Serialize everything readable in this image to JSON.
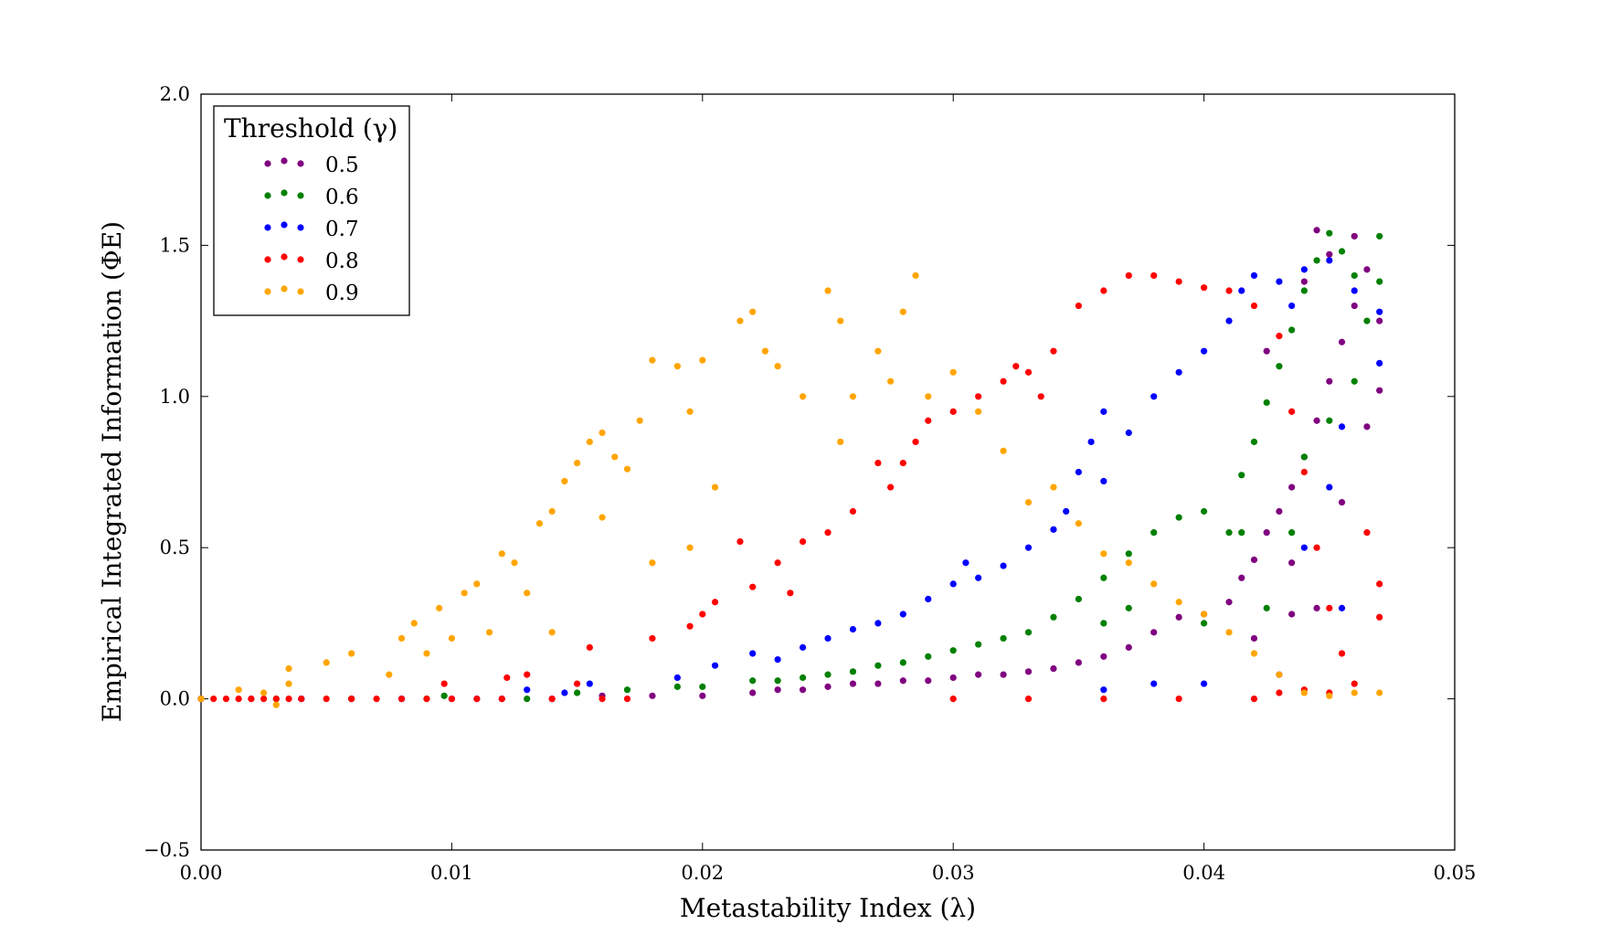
{
  "chart_data": {
    "type": "scatter",
    "xlabel": "Metastability Index (λ)",
    "ylabel": "Empirical Integrated Information (ΦE)",
    "xlim": [
      0.0,
      0.05
    ],
    "ylim": [
      -0.5,
      2.0
    ],
    "x_ticks": [
      "0.00",
      "0.01",
      "0.02",
      "0.03",
      "0.04",
      "0.05"
    ],
    "y_ticks": [
      "−0.5",
      "0.0",
      "0.5",
      "1.0",
      "1.5",
      "2.0"
    ],
    "grid": false,
    "legend": {
      "title": "Threshold (γ)",
      "placement": "top-left"
    },
    "series": [
      {
        "name": "0.5",
        "color": "#800080",
        "points": [
          [
            0.0,
            0.0
          ],
          [
            0.002,
            0.0
          ],
          [
            0.004,
            0.0
          ],
          [
            0.006,
            0.0
          ],
          [
            0.008,
            0.0
          ],
          [
            0.01,
            0.0
          ],
          [
            0.012,
            0.0
          ],
          [
            0.014,
            0.0
          ],
          [
            0.016,
            0.01
          ],
          [
            0.018,
            0.01
          ],
          [
            0.02,
            0.01
          ],
          [
            0.022,
            0.02
          ],
          [
            0.023,
            0.03
          ],
          [
            0.024,
            0.03
          ],
          [
            0.025,
            0.04
          ],
          [
            0.026,
            0.05
          ],
          [
            0.027,
            0.05
          ],
          [
            0.028,
            0.06
          ],
          [
            0.029,
            0.06
          ],
          [
            0.03,
            0.07
          ],
          [
            0.031,
            0.08
          ],
          [
            0.032,
            0.08
          ],
          [
            0.033,
            0.09
          ],
          [
            0.034,
            0.1
          ],
          [
            0.035,
            0.12
          ],
          [
            0.036,
            0.14
          ],
          [
            0.037,
            0.17
          ],
          [
            0.038,
            0.22
          ],
          [
            0.039,
            0.27
          ],
          [
            0.04,
            0.28
          ],
          [
            0.041,
            0.32
          ],
          [
            0.0415,
            0.4
          ],
          [
            0.042,
            0.46
          ],
          [
            0.0425,
            0.55
          ],
          [
            0.043,
            0.62
          ],
          [
            0.0435,
            0.7
          ],
          [
            0.044,
            0.8
          ],
          [
            0.0445,
            0.92
          ],
          [
            0.045,
            1.05
          ],
          [
            0.0455,
            1.18
          ],
          [
            0.046,
            1.3
          ],
          [
            0.0465,
            1.42
          ],
          [
            0.0445,
            1.55
          ],
          [
            0.046,
            1.53
          ],
          [
            0.047,
            1.25
          ],
          [
            0.047,
            1.02
          ],
          [
            0.0455,
            0.65
          ],
          [
            0.0435,
            0.45
          ],
          [
            0.044,
            1.38
          ],
          [
            0.045,
            1.47
          ],
          [
            0.0425,
            1.15
          ],
          [
            0.0465,
            0.9
          ],
          [
            0.0435,
            0.28
          ],
          [
            0.042,
            0.2
          ],
          [
            0.0445,
            0.3
          ]
        ]
      },
      {
        "name": "0.6",
        "color": "#008000",
        "points": [
          [
            0.0,
            0.0
          ],
          [
            0.003,
            0.0
          ],
          [
            0.006,
            0.0
          ],
          [
            0.009,
            0.0
          ],
          [
            0.0097,
            0.01
          ],
          [
            0.013,
            0.0
          ],
          [
            0.015,
            0.02
          ],
          [
            0.017,
            0.03
          ],
          [
            0.019,
            0.04
          ],
          [
            0.02,
            0.04
          ],
          [
            0.022,
            0.06
          ],
          [
            0.023,
            0.06
          ],
          [
            0.024,
            0.07
          ],
          [
            0.025,
            0.08
          ],
          [
            0.026,
            0.09
          ],
          [
            0.027,
            0.11
          ],
          [
            0.028,
            0.12
          ],
          [
            0.029,
            0.14
          ],
          [
            0.03,
            0.16
          ],
          [
            0.031,
            0.18
          ],
          [
            0.032,
            0.2
          ],
          [
            0.033,
            0.22
          ],
          [
            0.034,
            0.27
          ],
          [
            0.035,
            0.33
          ],
          [
            0.036,
            0.4
          ],
          [
            0.037,
            0.48
          ],
          [
            0.038,
            0.55
          ],
          [
            0.039,
            0.6
          ],
          [
            0.04,
            0.62
          ],
          [
            0.041,
            0.55
          ],
          [
            0.0415,
            0.74
          ],
          [
            0.042,
            0.85
          ],
          [
            0.0425,
            0.98
          ],
          [
            0.043,
            1.1
          ],
          [
            0.0435,
            1.22
          ],
          [
            0.044,
            1.35
          ],
          [
            0.0445,
            1.45
          ],
          [
            0.045,
            1.54
          ],
          [
            0.0455,
            1.48
          ],
          [
            0.046,
            1.4
          ],
          [
            0.047,
            1.53
          ],
          [
            0.047,
            1.38
          ],
          [
            0.0465,
            1.25
          ],
          [
            0.046,
            1.05
          ],
          [
            0.045,
            0.92
          ],
          [
            0.044,
            0.8
          ],
          [
            0.0435,
            0.55
          ],
          [
            0.0425,
            0.3
          ],
          [
            0.0415,
            0.55
          ],
          [
            0.04,
            0.25
          ],
          [
            0.037,
            0.3
          ],
          [
            0.036,
            0.25
          ]
        ]
      },
      {
        "name": "0.7",
        "color": "#0000ff",
        "points": [
          [
            0.0,
            0.0
          ],
          [
            0.004,
            0.0
          ],
          [
            0.008,
            0.0
          ],
          [
            0.011,
            0.0
          ],
          [
            0.013,
            0.03
          ],
          [
            0.0145,
            0.02
          ],
          [
            0.0155,
            0.05
          ],
          [
            0.019,
            0.07
          ],
          [
            0.0205,
            0.11
          ],
          [
            0.022,
            0.15
          ],
          [
            0.023,
            0.13
          ],
          [
            0.024,
            0.17
          ],
          [
            0.025,
            0.2
          ],
          [
            0.026,
            0.23
          ],
          [
            0.027,
            0.25
          ],
          [
            0.028,
            0.28
          ],
          [
            0.029,
            0.33
          ],
          [
            0.03,
            0.38
          ],
          [
            0.0305,
            0.45
          ],
          [
            0.031,
            0.4
          ],
          [
            0.032,
            0.44
          ],
          [
            0.033,
            0.5
          ],
          [
            0.034,
            0.56
          ],
          [
            0.0345,
            0.62
          ],
          [
            0.035,
            0.75
          ],
          [
            0.0355,
            0.85
          ],
          [
            0.036,
            0.95
          ],
          [
            0.037,
            0.88
          ],
          [
            0.038,
            1.0
          ],
          [
            0.039,
            1.08
          ],
          [
            0.04,
            1.15
          ],
          [
            0.041,
            1.25
          ],
          [
            0.0415,
            1.35
          ],
          [
            0.042,
            1.4
          ],
          [
            0.043,
            1.38
          ],
          [
            0.044,
            1.42
          ],
          [
            0.045,
            1.45
          ],
          [
            0.046,
            1.35
          ],
          [
            0.047,
            1.28
          ],
          [
            0.047,
            1.11
          ],
          [
            0.0455,
            0.9
          ],
          [
            0.045,
            0.7
          ],
          [
            0.044,
            0.5
          ],
          [
            0.0455,
            0.3
          ],
          [
            0.036,
            0.72
          ],
          [
            0.036,
            0.03
          ],
          [
            0.038,
            0.05
          ],
          [
            0.04,
            0.05
          ],
          [
            0.043,
            0.08
          ],
          [
            0.0435,
            1.3
          ]
        ]
      },
      {
        "name": "0.8",
        "color": "#ff0000",
        "points": [
          [
            0.0,
            0.0
          ],
          [
            0.0005,
            0.0
          ],
          [
            0.001,
            0.0
          ],
          [
            0.0015,
            0.0
          ],
          [
            0.002,
            0.0
          ],
          [
            0.0025,
            0.0
          ],
          [
            0.003,
            0.0
          ],
          [
            0.0035,
            0.0
          ],
          [
            0.004,
            0.0
          ],
          [
            0.005,
            0.0
          ],
          [
            0.006,
            0.0
          ],
          [
            0.007,
            0.0
          ],
          [
            0.008,
            0.0
          ],
          [
            0.009,
            0.0
          ],
          [
            0.0097,
            0.05
          ],
          [
            0.01,
            0.0
          ],
          [
            0.011,
            0.0
          ],
          [
            0.012,
            0.0
          ],
          [
            0.0122,
            0.07
          ],
          [
            0.013,
            0.08
          ],
          [
            0.014,
            0.0
          ],
          [
            0.015,
            0.05
          ],
          [
            0.0155,
            0.17
          ],
          [
            0.016,
            0.0
          ],
          [
            0.017,
            0.0
          ],
          [
            0.018,
            0.2
          ],
          [
            0.0195,
            0.24
          ],
          [
            0.02,
            0.28
          ],
          [
            0.0205,
            0.32
          ],
          [
            0.0215,
            0.52
          ],
          [
            0.022,
            0.37
          ],
          [
            0.023,
            0.45
          ],
          [
            0.0235,
            0.35
          ],
          [
            0.024,
            0.52
          ],
          [
            0.025,
            0.55
          ],
          [
            0.026,
            0.62
          ],
          [
            0.027,
            0.78
          ],
          [
            0.0275,
            0.7
          ],
          [
            0.028,
            0.78
          ],
          [
            0.0285,
            0.85
          ],
          [
            0.029,
            0.92
          ],
          [
            0.03,
            0.95
          ],
          [
            0.031,
            1.0
          ],
          [
            0.032,
            1.05
          ],
          [
            0.033,
            1.08
          ],
          [
            0.034,
            1.15
          ],
          [
            0.035,
            1.3
          ],
          [
            0.036,
            1.35
          ],
          [
            0.037,
            1.4
          ],
          [
            0.038,
            1.4
          ],
          [
            0.039,
            1.38
          ],
          [
            0.04,
            1.36
          ],
          [
            0.041,
            1.35
          ],
          [
            0.042,
            1.3
          ],
          [
            0.043,
            1.2
          ],
          [
            0.0435,
            0.95
          ],
          [
            0.044,
            0.75
          ],
          [
            0.0445,
            0.5
          ],
          [
            0.045,
            0.3
          ],
          [
            0.0455,
            0.15
          ],
          [
            0.046,
            0.05
          ],
          [
            0.047,
            0.38
          ],
          [
            0.047,
            0.27
          ],
          [
            0.0465,
            0.55
          ],
          [
            0.044,
            0.03
          ],
          [
            0.045,
            0.02
          ],
          [
            0.043,
            0.02
          ],
          [
            0.03,
            0.0
          ],
          [
            0.033,
            0.0
          ],
          [
            0.036,
            0.0
          ],
          [
            0.039,
            0.0
          ],
          [
            0.042,
            0.0
          ],
          [
            0.0325,
            1.1
          ],
          [
            0.0335,
            1.0
          ]
        ]
      },
      {
        "name": "0.9",
        "color": "#ffa500",
        "points": [
          [
            0.0,
            0.0
          ],
          [
            0.0015,
            0.03
          ],
          [
            0.0025,
            0.02
          ],
          [
            0.003,
            -0.02
          ],
          [
            0.0035,
            0.05
          ],
          [
            0.0035,
            0.1
          ],
          [
            0.005,
            0.12
          ],
          [
            0.006,
            0.15
          ],
          [
            0.0075,
            0.08
          ],
          [
            0.008,
            0.2
          ],
          [
            0.0085,
            0.25
          ],
          [
            0.009,
            0.15
          ],
          [
            0.0095,
            0.3
          ],
          [
            0.01,
            0.2
          ],
          [
            0.0105,
            0.35
          ],
          [
            0.011,
            0.38
          ],
          [
            0.0115,
            0.22
          ],
          [
            0.012,
            0.48
          ],
          [
            0.0125,
            0.45
          ],
          [
            0.013,
            0.35
          ],
          [
            0.0135,
            0.58
          ],
          [
            0.014,
            0.62
          ],
          [
            0.0145,
            0.72
          ],
          [
            0.015,
            0.78
          ],
          [
            0.0155,
            0.85
          ],
          [
            0.016,
            0.88
          ],
          [
            0.0165,
            0.8
          ],
          [
            0.017,
            0.76
          ],
          [
            0.0175,
            0.92
          ],
          [
            0.018,
            1.12
          ],
          [
            0.019,
            1.1
          ],
          [
            0.0195,
            0.95
          ],
          [
            0.02,
            1.12
          ],
          [
            0.0205,
            0.7
          ],
          [
            0.0215,
            1.25
          ],
          [
            0.022,
            1.28
          ],
          [
            0.0225,
            1.15
          ],
          [
            0.023,
            1.1
          ],
          [
            0.024,
            1.0
          ],
          [
            0.025,
            1.35
          ],
          [
            0.0255,
            1.25
          ],
          [
            0.026,
            1.0
          ],
          [
            0.027,
            1.15
          ],
          [
            0.0275,
            1.05
          ],
          [
            0.028,
            1.28
          ],
          [
            0.0285,
            1.4
          ],
          [
            0.029,
            1.0
          ],
          [
            0.03,
            1.08
          ],
          [
            0.031,
            0.95
          ],
          [
            0.032,
            0.82
          ],
          [
            0.033,
            0.65
          ],
          [
            0.034,
            0.7
          ],
          [
            0.035,
            0.58
          ],
          [
            0.036,
            0.48
          ],
          [
            0.037,
            0.45
          ],
          [
            0.038,
            0.38
          ],
          [
            0.039,
            0.32
          ],
          [
            0.04,
            0.28
          ],
          [
            0.041,
            0.22
          ],
          [
            0.042,
            0.15
          ],
          [
            0.043,
            0.08
          ],
          [
            0.044,
            0.02
          ],
          [
            0.045,
            0.01
          ],
          [
            0.046,
            0.02
          ],
          [
            0.047,
            0.02
          ],
          [
            0.0255,
            0.85
          ],
          [
            0.0195,
            0.5
          ],
          [
            0.014,
            0.22
          ],
          [
            0.016,
            0.6
          ],
          [
            0.018,
            0.45
          ]
        ]
      }
    ]
  }
}
